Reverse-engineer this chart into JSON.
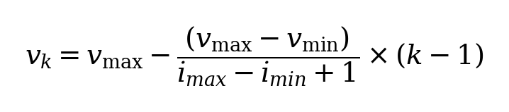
{
  "formula": "$v_k = v_{\\mathrm{max}} - \\dfrac{\\left(v_{\\mathrm{max}} - v_{\\mathrm{min}}\\right)}{i_{max} - i_{min} + 1} \\times \\left(k - 1\\right)$",
  "background_color": "#ffffff",
  "text_color": "#000000",
  "fontsize": 28,
  "fig_width": 7.18,
  "fig_height": 1.59,
  "dpi": 100
}
